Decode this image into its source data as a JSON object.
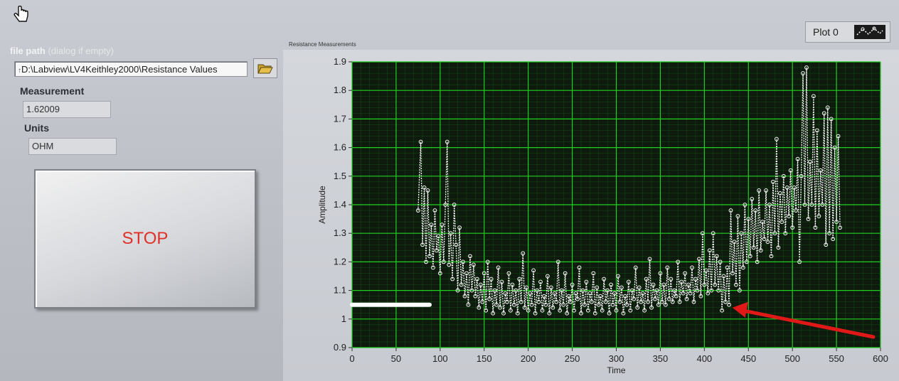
{
  "controls": {
    "file_path_label": "file path",
    "file_path_hint": "(dialog if empty)",
    "file_path_value": "D:\\Labview\\LV4Keithley2000\\Resistance Values",
    "measurement_label": "Measurement",
    "measurement_value": "1.62009",
    "units_label": "Units",
    "units_value": "OHM",
    "stop_label": "STOP"
  },
  "icons": {
    "cursor": "hand-pointer-icon",
    "browse": "folder-open-icon",
    "legend_plot": "plot-style-icon"
  },
  "legend": {
    "plot_name": "Plot 0"
  },
  "colors": {
    "plot_bg": "#0d1a0d",
    "grid": "#1fd11f",
    "trace": "#ffffff",
    "stop_text": "#e0302a",
    "annotation_arrow": "#e01818"
  },
  "chart_data": {
    "type": "line",
    "title": "Resistance Measurements",
    "xlabel": "Time",
    "ylabel": "Amplitude",
    "xlim": [
      0,
      600
    ],
    "ylim": [
      0.9,
      1.9
    ],
    "xticks": [
      0,
      50,
      100,
      150,
      200,
      250,
      300,
      350,
      400,
      450,
      500,
      550,
      600
    ],
    "yticks": [
      0.9,
      1,
      1.1,
      1.2,
      1.3,
      1.4,
      1.5,
      1.6,
      1.7,
      1.8,
      1.9
    ],
    "ytick_labels": [
      "0.9",
      "1",
      "1.1",
      "1.2",
      "1.3",
      "1.4",
      "1.5",
      "1.6",
      "1.7",
      "1.8",
      "1.9"
    ],
    "grid": true,
    "series": [
      {
        "points": [
          [
            0,
            1.05
          ],
          [
            10,
            1.05
          ],
          [
            20,
            1.05
          ],
          [
            30,
            1.05
          ],
          [
            40,
            1.05
          ],
          [
            50,
            1.05
          ],
          [
            60,
            1.05
          ],
          [
            70,
            1.05
          ],
          [
            80,
            1.05
          ],
          [
            88,
            1.05
          ],
          [
            75,
            1.38
          ],
          [
            78,
            1.62
          ],
          [
            80,
            1.26
          ],
          [
            82,
            1.46
          ],
          [
            84,
            1.2
          ],
          [
            86,
            1.45
          ],
          [
            88,
            1.22
          ],
          [
            90,
            1.33
          ],
          [
            92,
            1.18
          ],
          [
            94,
            1.38
          ],
          [
            96,
            1.24
          ],
          [
            98,
            1.29
          ],
          [
            100,
            1.16
          ],
          [
            102,
            1.33
          ],
          [
            104,
            1.2
          ],
          [
            106,
            1.4
          ],
          [
            108,
            1.62
          ],
          [
            110,
            1.19
          ],
          [
            112,
            1.3
          ],
          [
            114,
            1.14
          ],
          [
            116,
            1.4
          ],
          [
            118,
            1.26
          ],
          [
            120,
            1.1
          ],
          [
            122,
            1.32
          ],
          [
            124,
            1.12
          ],
          [
            126,
            1.2
          ],
          [
            128,
            1.08
          ],
          [
            130,
            1.16
          ],
          [
            132,
            1.05
          ],
          [
            134,
            1.22
          ],
          [
            136,
            1.1
          ],
          [
            138,
            1.19
          ],
          [
            140,
            1.08
          ],
          [
            142,
            1.14
          ],
          [
            144,
            1.04
          ],
          [
            146,
            1.12
          ],
          [
            148,
            1.06
          ],
          [
            150,
            1.16
          ],
          [
            152,
            1.03
          ],
          [
            154,
            1.2
          ],
          [
            156,
            1.07
          ],
          [
            158,
            1.14
          ],
          [
            160,
            1.02
          ],
          [
            162,
            1.1
          ],
          [
            164,
            1.05
          ],
          [
            166,
            1.18
          ],
          [
            168,
            1.04
          ],
          [
            170,
            1.13
          ],
          [
            172,
            1.02
          ],
          [
            174,
            1.09
          ],
          [
            176,
            1.06
          ],
          [
            178,
            1.16
          ],
          [
            180,
            1.03
          ],
          [
            182,
            1.12
          ],
          [
            184,
            1.05
          ],
          [
            186,
            1.1
          ],
          [
            188,
            1.02
          ],
          [
            190,
            1.14
          ],
          [
            192,
            1.06
          ],
          [
            194,
            1.23
          ],
          [
            196,
            1.04
          ],
          [
            198,
            1.11
          ],
          [
            200,
            1.03
          ],
          [
            202,
            1.09
          ],
          [
            204,
            1.05
          ],
          [
            206,
            1.17
          ],
          [
            208,
            1.02
          ],
          [
            210,
            1.1
          ],
          [
            212,
            1.06
          ],
          [
            214,
            1.13
          ],
          [
            216,
            1.03
          ],
          [
            218,
            1.08
          ],
          [
            220,
            1.05
          ],
          [
            222,
            1.15
          ],
          [
            224,
            1.02
          ],
          [
            226,
            1.11
          ],
          [
            228,
            1.04
          ],
          [
            230,
            1.09
          ],
          [
            232,
            1.06
          ],
          [
            234,
            1.2
          ],
          [
            236,
            1.03
          ],
          [
            238,
            1.1
          ],
          [
            240,
            1.05
          ],
          [
            242,
            1.16
          ],
          [
            244,
            1.02
          ],
          [
            246,
            1.08
          ],
          [
            248,
            1.06
          ],
          [
            250,
            1.12
          ],
          [
            252,
            1.03
          ],
          [
            254,
            1.09
          ],
          [
            256,
            1.07
          ],
          [
            258,
            1.18
          ],
          [
            260,
            1.02
          ],
          [
            262,
            1.1
          ],
          [
            264,
            1.05
          ],
          [
            266,
            1.13
          ],
          [
            268,
            1.03
          ],
          [
            270,
            1.09
          ],
          [
            272,
            1.06
          ],
          [
            274,
            1.16
          ],
          [
            276,
            1.02
          ],
          [
            278,
            1.11
          ],
          [
            280,
            1.05
          ],
          [
            282,
            1.08
          ],
          [
            284,
            1.03
          ],
          [
            286,
            1.14
          ],
          [
            288,
            1.06
          ],
          [
            290,
            1.1
          ],
          [
            292,
            1.02
          ],
          [
            294,
            1.12
          ],
          [
            296,
            1.05
          ],
          [
            298,
            1.09
          ],
          [
            300,
            1.03
          ],
          [
            302,
            1.15
          ],
          [
            304,
            1.06
          ],
          [
            306,
            1.11
          ],
          [
            308,
            1.02
          ],
          [
            310,
            1.08
          ],
          [
            312,
            1.05
          ],
          [
            314,
            1.13
          ],
          [
            316,
            1.03
          ],
          [
            318,
            1.1
          ],
          [
            320,
            1.07
          ],
          [
            322,
            1.18
          ],
          [
            324,
            1.04
          ],
          [
            326,
            1.11
          ],
          [
            328,
            1.06
          ],
          [
            330,
            1.09
          ],
          [
            332,
            1.03
          ],
          [
            334,
            1.14
          ],
          [
            336,
            1.06
          ],
          [
            338,
            1.21
          ],
          [
            340,
            1.04
          ],
          [
            342,
            1.12
          ],
          [
            344,
            1.07
          ],
          [
            346,
            1.1
          ],
          [
            348,
            1.05
          ],
          [
            350,
            1.16
          ],
          [
            352,
            1.06
          ],
          [
            354,
            1.12
          ],
          [
            356,
            1.05
          ],
          [
            358,
            1.18
          ],
          [
            360,
            1.07
          ],
          [
            362,
            1.14
          ],
          [
            364,
            1.06
          ],
          [
            366,
            1.1
          ],
          [
            368,
            1.08
          ],
          [
            370,
            1.2
          ],
          [
            372,
            1.06
          ],
          [
            374,
            1.13
          ],
          [
            376,
            1.09
          ],
          [
            378,
            1.16
          ],
          [
            380,
            1.07
          ],
          [
            382,
            1.12
          ],
          [
            384,
            1.09
          ],
          [
            386,
            1.18
          ],
          [
            388,
            1.06
          ],
          [
            390,
            1.14
          ],
          [
            392,
            1.1
          ],
          [
            394,
            1.21
          ],
          [
            396,
            1.08
          ],
          [
            398,
            1.3
          ],
          [
            400,
            1.12
          ],
          [
            402,
            1.17
          ],
          [
            404,
            1.09
          ],
          [
            406,
            1.24
          ],
          [
            408,
            1.1
          ],
          [
            410,
            1.3
          ],
          [
            412,
            1.12
          ],
          [
            414,
            1.22
          ],
          [
            416,
            1.1
          ],
          [
            418,
            1.2
          ],
          [
            420,
            1.03
          ],
          [
            422,
            1.15
          ],
          [
            424,
            1.06
          ],
          [
            426,
            1.18
          ],
          [
            428,
            1.05
          ],
          [
            430,
            1.38
          ],
          [
            432,
            1.16
          ],
          [
            434,
            1.27
          ],
          [
            436,
            1.12
          ],
          [
            438,
            1.36
          ],
          [
            440,
            1.1
          ],
          [
            442,
            1.3
          ],
          [
            444,
            1.18
          ],
          [
            446,
            1.4
          ],
          [
            448,
            1.2
          ],
          [
            450,
            1.35
          ],
          [
            452,
            1.22
          ],
          [
            454,
            1.42
          ],
          [
            456,
            1.25
          ],
          [
            458,
            1.38
          ],
          [
            460,
            1.2
          ],
          [
            462,
            1.45
          ],
          [
            464,
            1.24
          ],
          [
            466,
            1.34
          ],
          [
            468,
            1.28
          ],
          [
            470,
            1.45
          ],
          [
            472,
            1.27
          ],
          [
            474,
            1.4
          ],
          [
            476,
            1.22
          ],
          [
            478,
            1.48
          ],
          [
            480,
            1.3
          ],
          [
            482,
            1.63
          ],
          [
            484,
            1.25
          ],
          [
            486,
            1.44
          ],
          [
            488,
            1.34
          ],
          [
            490,
            1.5
          ],
          [
            492,
            1.3
          ],
          [
            494,
            1.46
          ],
          [
            496,
            1.36
          ],
          [
            498,
            1.52
          ],
          [
            500,
            1.32
          ],
          [
            502,
            1.46
          ],
          [
            504,
            1.38
          ],
          [
            506,
            1.56
          ],
          [
            508,
            1.2
          ],
          [
            510,
            1.5
          ],
          [
            512,
            1.86
          ],
          [
            514,
            1.4
          ],
          [
            516,
            1.88
          ],
          [
            518,
            1.35
          ],
          [
            520,
            1.55
          ],
          [
            522,
            1.4
          ],
          [
            524,
            1.78
          ],
          [
            526,
            1.32
          ],
          [
            528,
            1.66
          ],
          [
            530,
            1.36
          ],
          [
            532,
            1.52
          ],
          [
            534,
            1.4
          ],
          [
            536,
            1.72
          ],
          [
            538,
            1.26
          ],
          [
            540,
            1.74
          ],
          [
            542,
            1.3
          ],
          [
            544,
            1.7
          ],
          [
            546,
            1.28
          ],
          [
            548,
            1.6
          ],
          [
            550,
            1.34
          ],
          [
            552,
            1.64
          ],
          [
            554,
            1.32
          ]
        ]
      }
    ]
  }
}
